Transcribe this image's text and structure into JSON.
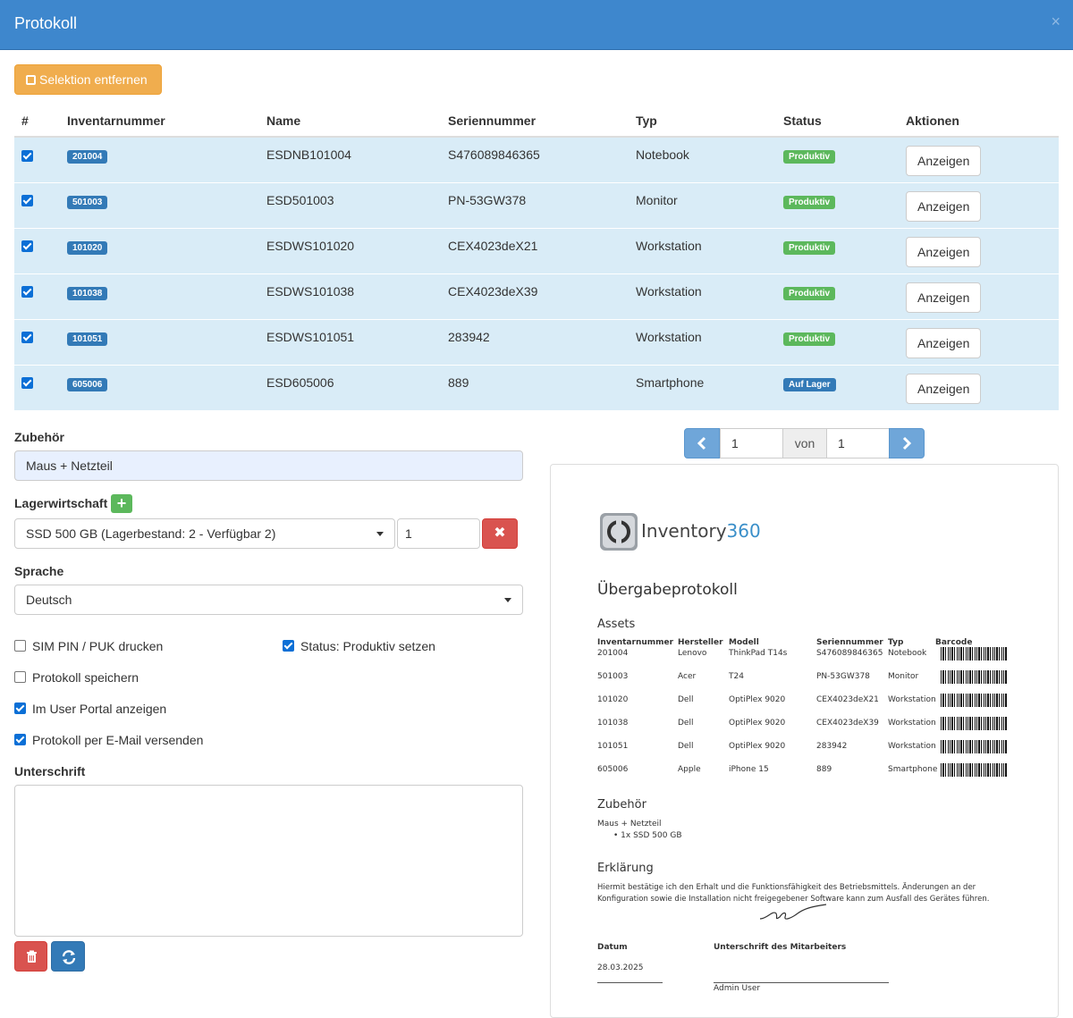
{
  "header": {
    "title": "Protokoll",
    "close": "×"
  },
  "toolbar": {
    "deselect_label": "Selektion entfernen"
  },
  "table": {
    "headers": [
      "#",
      "Inventarnummer",
      "Name",
      "Seriennummer",
      "Typ",
      "Status",
      "Aktionen"
    ],
    "rows": [
      {
        "inv": "201004",
        "name": "ESDNB101004",
        "serial": "S476089846365",
        "type": "Notebook",
        "status": "Produktiv",
        "action": "Anzeigen"
      },
      {
        "inv": "501003",
        "name": "ESD501003",
        "serial": "PN-53GW378",
        "type": "Monitor",
        "status": "Produktiv",
        "action": "Anzeigen"
      },
      {
        "inv": "101020",
        "name": "ESDWS101020",
        "serial": "CEX4023deX21",
        "type": "Workstation",
        "status": "Produktiv",
        "action": "Anzeigen"
      },
      {
        "inv": "101038",
        "name": "ESDWS101038",
        "serial": "CEX4023deX39",
        "type": "Workstation",
        "status": "Produktiv",
        "action": "Anzeigen"
      },
      {
        "inv": "101051",
        "name": "ESDWS101051",
        "serial": "283942",
        "type": "Workstation",
        "status": "Produktiv",
        "action": "Anzeigen"
      },
      {
        "inv": "605006",
        "name": "ESD605006",
        "serial": "889",
        "type": "Smartphone",
        "status": "Auf Lager",
        "action": "Anzeigen"
      }
    ]
  },
  "form": {
    "zubehoer_label": "Zubehör",
    "zubehoer_value": "Maus + Netzteil",
    "lager_label": "Lagerwirtschaft",
    "lager_value": "SSD 500 GB (Lagerbestand: 2 - Verfügbar 2)",
    "lager_qty": "1",
    "sprache_label": "Sprache",
    "sprache_value": "Deutsch",
    "options": {
      "sim": "SIM PIN / PUK drucken",
      "status": "Status: Produktiv setzen",
      "save": "Protokoll speichern",
      "portal": "Im User Portal anzeigen",
      "email": "Protokoll per E-Mail versenden"
    },
    "unterschrift_label": "Unterschrift"
  },
  "pager": {
    "page": "1",
    "of_label": "von",
    "total": "1"
  },
  "preview": {
    "logo_text": "Inventory",
    "logo_num": "360",
    "title": "Übergabeprotokoll",
    "assets_heading": "Assets",
    "cols": [
      "Inventarnummer",
      "Hersteller",
      "Modell",
      "Seriennummer",
      "Typ",
      "Barcode"
    ],
    "rows": [
      {
        "inv": "201004",
        "maker": "Lenovo",
        "model": "ThinkPad T14s",
        "serial": "S476089846365",
        "type": "Notebook"
      },
      {
        "inv": "501003",
        "maker": "Acer",
        "model": "T24",
        "serial": "PN-53GW378",
        "type": "Monitor"
      },
      {
        "inv": "101020",
        "maker": "Dell",
        "model": "OptiPlex 9020",
        "serial": "CEX4023deX21",
        "type": "Workstation"
      },
      {
        "inv": "101038",
        "maker": "Dell",
        "model": "OptiPlex 9020",
        "serial": "CEX4023deX39",
        "type": "Workstation"
      },
      {
        "inv": "101051",
        "maker": "Dell",
        "model": "OptiPlex 9020",
        "serial": "283942",
        "type": "Workstation"
      },
      {
        "inv": "605006",
        "maker": "Apple",
        "model": "iPhone 15",
        "serial": "889",
        "type": "Smartphone"
      }
    ],
    "zubehoer_heading": "Zubehör",
    "zubehoer_line": "Maus + Netzteil",
    "zubehoer_item": "1x SSD 500 GB",
    "erklaerung_heading": "Erklärung",
    "erklaerung_line1": "Hiermit bestätige ich den Erhalt und die Funktionsfähigkeit des Betriebsmittels. Änderungen an der",
    "erklaerung_line2": "Konfiguration sowie die Installation nicht freigegebener Software kann zum Ausfall des Gerätes führen.",
    "datum_label": "Datum",
    "datum_value": "28.03.2025",
    "unterschrift_label": "Unterschrift des Mitarbeiters",
    "signer": "Admin User"
  }
}
